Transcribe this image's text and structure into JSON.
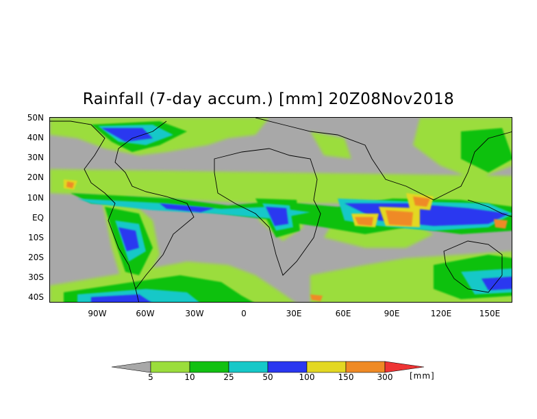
{
  "title": "Rainfall (7-day accum.) [mm] 20Z08Nov2018",
  "lat_labels": [
    "50N",
    "40N",
    "30N",
    "20N",
    "10N",
    "EQ",
    "10S",
    "20S",
    "30S",
    "40S"
  ],
  "lon_labels": [
    "90W",
    "60W",
    "30W",
    "0",
    "30E",
    "60E",
    "90E",
    "120E",
    "150E"
  ],
  "colorbar": {
    "ticks": [
      "5",
      "10",
      "25",
      "50",
      "100",
      "150",
      "300"
    ],
    "unit": "[mm]",
    "colors": {
      "below": "#a8a8a8",
      "c1": "#9bdd3c",
      "c2": "#11c111",
      "c3": "#16c8c8",
      "c4": "#2a37f0",
      "c5": "#e3d823",
      "c6": "#ef8a25",
      "above": "#ee3434"
    }
  }
}
